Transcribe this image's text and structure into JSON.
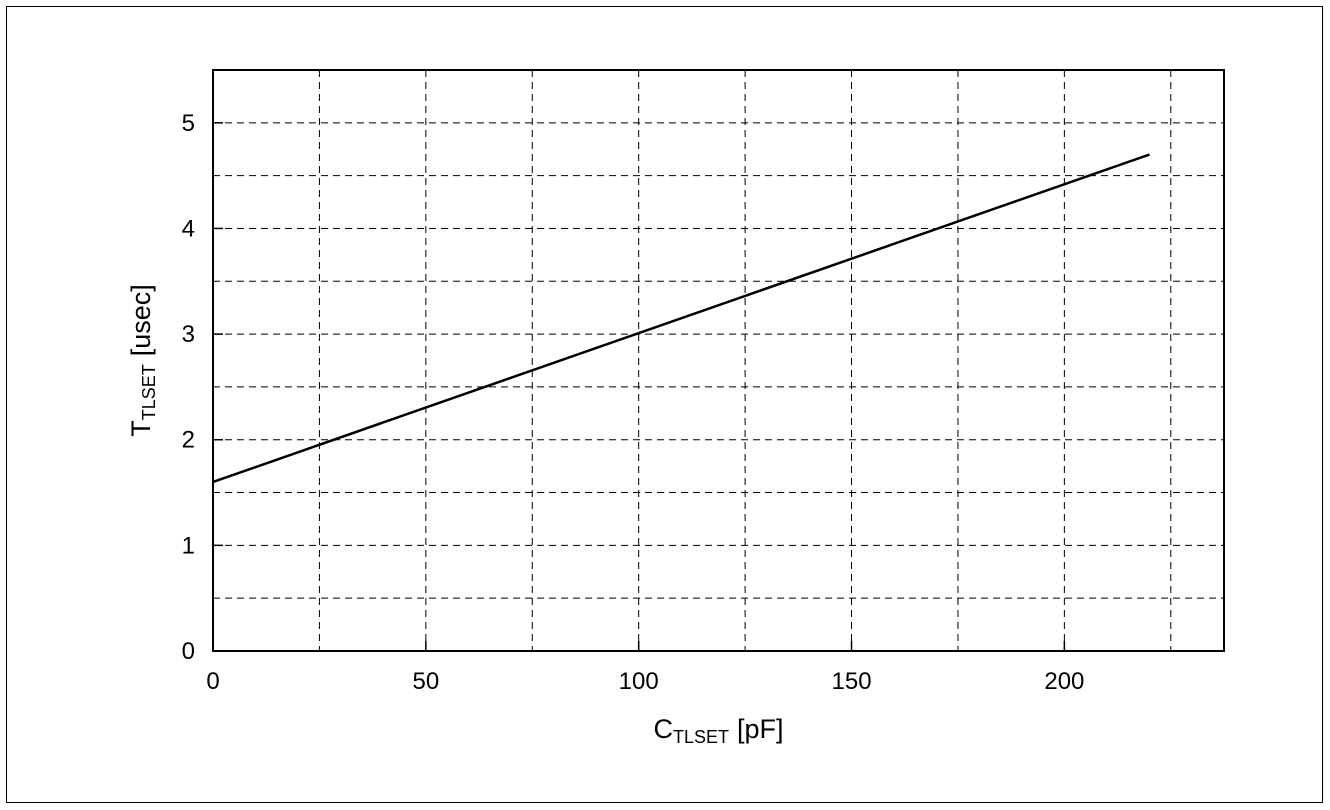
{
  "chart_data": {
    "type": "line",
    "title": "",
    "xlabel": {
      "main": "C",
      "subscript": "TLSET",
      "unit": "[pF]"
    },
    "ylabel": {
      "main": "T",
      "subscript": "TLSET",
      "unit": "[usec]"
    },
    "xlim": [
      0,
      237.5
    ],
    "ylim": [
      0,
      5.5
    ],
    "x_ticks": [
      0,
      50,
      100,
      150,
      200
    ],
    "y_ticks": [
      0,
      1,
      2,
      3,
      4,
      5
    ],
    "x_grid": [
      25,
      50,
      75,
      100,
      125,
      150,
      175,
      200,
      225
    ],
    "y_grid": [
      0.5,
      1,
      1.5,
      2,
      2.5,
      3,
      3.5,
      4,
      4.5,
      5
    ],
    "grid": true,
    "grid_style": "dashed",
    "series": [
      {
        "color": "#000000",
        "x": [
          0,
          220
        ],
        "y": [
          1.6,
          4.7
        ]
      }
    ]
  }
}
